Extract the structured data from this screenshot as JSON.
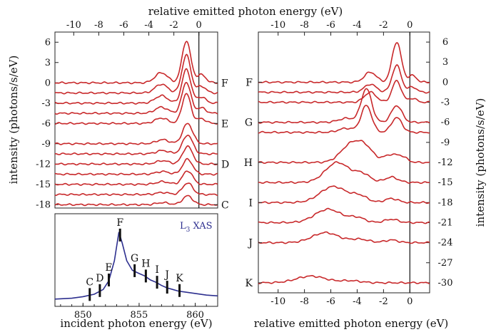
{
  "chart_data": [
    {
      "type": "line",
      "top_axis_label": "relative emitted photon energy (eV)",
      "ylabel": "intensity (photons/s/eV)",
      "xlim": [
        -11.5,
        1.5
      ],
      "x_ticks": [
        "-10",
        "-8",
        "-6",
        "-4",
        "-2",
        "0"
      ],
      "ylim": [
        -18.5,
        7.5
      ],
      "y_ticks": [
        "6",
        "3",
        "0",
        "-3",
        "-6",
        "-9",
        "-12",
        "-15",
        "-18"
      ],
      "zero_line_x": 0,
      "curve_markers": [
        {
          "label": "F",
          "y": 0
        },
        {
          "label": "E",
          "y": -6
        },
        {
          "label": "D",
          "y": -12
        },
        {
          "label": "C",
          "y": -18
        }
      ],
      "series": [
        {
          "offset": 0,
          "peaks": [
            [
              -1,
              6.2,
              0.35
            ],
            [
              -3,
              1.5,
              0.5
            ],
            [
              0.2,
              1.2,
              0.35
            ]
          ]
        },
        {
          "offset": -1.5,
          "peaks": [
            [
              -1,
              5.6,
              0.35
            ],
            [
              -3,
              1.3,
              0.5
            ],
            [
              0.2,
              1.0,
              0.35
            ]
          ]
        },
        {
          "offset": -3,
          "peaks": [
            [
              -1,
              5.0,
              0.35
            ],
            [
              -3,
              1.1,
              0.5
            ],
            [
              0.2,
              0.9,
              0.35
            ]
          ]
        },
        {
          "offset": -4.5,
          "peaks": [
            [
              -1,
              4.6,
              0.35
            ],
            [
              -3,
              0.9,
              0.5
            ],
            [
              0.2,
              0.8,
              0.35
            ]
          ]
        },
        {
          "offset": -6,
          "peaks": [
            [
              -1,
              4.4,
              0.35
            ],
            [
              -3,
              0.8,
              0.5
            ],
            [
              0.2,
              0.7,
              0.35
            ]
          ]
        },
        {
          "offset": -9,
          "peaks": [
            [
              -0.9,
              3.0,
              0.4
            ],
            [
              -2.9,
              0.6,
              0.5
            ]
          ]
        },
        {
          "offset": -10.5,
          "peaks": [
            [
              -0.9,
              2.8,
              0.4
            ],
            [
              -2.9,
              0.5,
              0.5
            ]
          ]
        },
        {
          "offset": -12,
          "peaks": [
            [
              -0.9,
              2.6,
              0.4
            ],
            [
              -2.9,
              0.5,
              0.5
            ]
          ]
        },
        {
          "offset": -13.5,
          "peaks": [
            [
              -0.9,
              2.2,
              0.4
            ],
            [
              -2.9,
              0.4,
              0.5
            ]
          ]
        },
        {
          "offset": -15,
          "peaks": [
            [
              -0.9,
              2.0,
              0.4
            ],
            [
              -2.9,
              0.4,
              0.5
            ]
          ]
        },
        {
          "offset": -16.5,
          "peaks": [
            [
              -0.9,
              1.7,
              0.4
            ],
            [
              -2.9,
              0.3,
              0.5
            ]
          ]
        },
        {
          "offset": -18,
          "peaks": [
            [
              -0.9,
              1.3,
              0.4
            ],
            [
              -2.9,
              0.3,
              0.5
            ]
          ]
        }
      ]
    },
    {
      "type": "line",
      "title": "",
      "xlabel": "incident photon energy (eV)",
      "xlim": [
        847.5,
        862
      ],
      "x_ticks": [
        "850",
        "855",
        "860"
      ],
      "series_label": "L3 XAS",
      "series_label_base": "L",
      "series_label_sub": "3",
      "series_label_rest": " XAS",
      "line_color": "#2d2f8f",
      "points": [
        [
          847.5,
          0.02
        ],
        [
          849,
          0.03
        ],
        [
          850,
          0.05
        ],
        [
          851,
          0.08
        ],
        [
          851.8,
          0.14
        ],
        [
          852.3,
          0.25
        ],
        [
          852.8,
          0.5
        ],
        [
          853.2,
          0.86
        ],
        [
          853.5,
          0.72
        ],
        [
          853.9,
          0.5
        ],
        [
          854.4,
          0.38
        ],
        [
          855,
          0.34
        ],
        [
          855.5,
          0.31
        ],
        [
          856,
          0.26
        ],
        [
          856.5,
          0.23
        ],
        [
          857,
          0.19
        ],
        [
          857.5,
          0.16
        ],
        [
          858,
          0.14
        ],
        [
          858.5,
          0.12
        ],
        [
          859,
          0.11
        ],
        [
          860,
          0.09
        ],
        [
          861,
          0.07
        ],
        [
          862,
          0.06
        ]
      ],
      "markers": [
        {
          "label": "C",
          "x": 850.6
        },
        {
          "label": "D",
          "x": 851.5
        },
        {
          "label": "E",
          "x": 852.3
        },
        {
          "label": "F",
          "x": 853.3
        },
        {
          "label": "G",
          "x": 854.6
        },
        {
          "label": "H",
          "x": 855.6
        },
        {
          "label": "I",
          "x": 856.6
        },
        {
          "label": "J",
          "x": 857.5
        },
        {
          "label": "K",
          "x": 858.6
        }
      ]
    },
    {
      "type": "line",
      "top_axis_label": "",
      "xlabel": "relative emitted photon energy (eV)",
      "ylabel": "intensity (photons/s/eV)",
      "xlim": [
        -11.5,
        1.5
      ],
      "x_ticks": [
        "-10",
        "-8",
        "-6",
        "-4",
        "-2",
        "0"
      ],
      "ylim": [
        -31.5,
        7.5
      ],
      "y_ticks": [
        "6",
        "3",
        "0",
        "-3",
        "-6",
        "-9",
        "-12",
        "-15",
        "-18",
        "-21",
        "-24",
        "-27",
        "-30"
      ],
      "zero_line_x": 0,
      "curve_markers": [
        {
          "label": "F",
          "y": 0
        },
        {
          "label": "G",
          "y": -6
        },
        {
          "label": "H",
          "y": -12
        },
        {
          "label": "I",
          "y": -18
        },
        {
          "label": "J",
          "y": -24
        },
        {
          "label": "K",
          "y": -30
        }
      ],
      "series": [
        {
          "offset": 0,
          "peaks": [
            [
              -1,
              6.0,
              0.35
            ],
            [
              -3,
              1.5,
              0.45
            ],
            [
              0.2,
              1.0,
              0.3
            ]
          ]
        },
        {
          "offset": -1.5,
          "peaks": [
            [
              -1,
              4.0,
              0.35
            ],
            [
              -3,
              1.2,
              0.45
            ],
            [
              0.2,
              0.8,
              0.3
            ]
          ]
        },
        {
          "offset": -3,
          "peaks": [
            [
              -1,
              3.2,
              0.35
            ],
            [
              -3,
              1.5,
              0.45
            ],
            [
              0.2,
              0.6,
              0.3
            ]
          ]
        },
        {
          "offset": -6,
          "peaks": [
            [
              -3.3,
              5.0,
              0.4
            ],
            [
              -1,
              2.5,
              0.4
            ],
            [
              -4.8,
              0.6,
              0.6
            ]
          ]
        },
        {
          "offset": -7.5,
          "peaks": [
            [
              -3.3,
              4.0,
              0.4
            ],
            [
              -1,
              2.2,
              0.4
            ],
            [
              -4.8,
              0.6,
              0.6
            ]
          ]
        },
        {
          "offset": -12,
          "peaks": [
            [
              -4.4,
              2.8,
              0.8
            ],
            [
              -3.3,
              1.6,
              0.6
            ],
            [
              -1.5,
              1.1,
              0.5
            ],
            [
              -0.6,
              0.8,
              0.4
            ]
          ]
        },
        {
          "offset": -15,
          "peaks": [
            [
              -5.5,
              3.0,
              0.9
            ],
            [
              -3.6,
              1.2,
              0.6
            ],
            [
              -1.4,
              0.8,
              0.5
            ]
          ]
        },
        {
          "offset": -18,
          "peaks": [
            [
              -5.8,
              2.4,
              1.0
            ],
            [
              -3.8,
              0.9,
              0.6
            ],
            [
              -1.4,
              0.6,
              0.5
            ]
          ]
        },
        {
          "offset": -21,
          "peaks": [
            [
              -6.2,
              2.0,
              1.0
            ],
            [
              -4.0,
              0.7,
              0.6
            ],
            [
              -1.4,
              0.5,
              0.5
            ]
          ]
        },
        {
          "offset": -24,
          "peaks": [
            [
              -6.4,
              1.5,
              1.0
            ],
            [
              -3.8,
              0.5,
              0.7
            ],
            [
              -1.4,
              0.4,
              0.5
            ]
          ]
        },
        {
          "offset": -30,
          "peaks": [
            [
              -7.5,
              1.0,
              1.1
            ],
            [
              -4.5,
              0.3,
              0.8
            ]
          ]
        }
      ]
    }
  ]
}
